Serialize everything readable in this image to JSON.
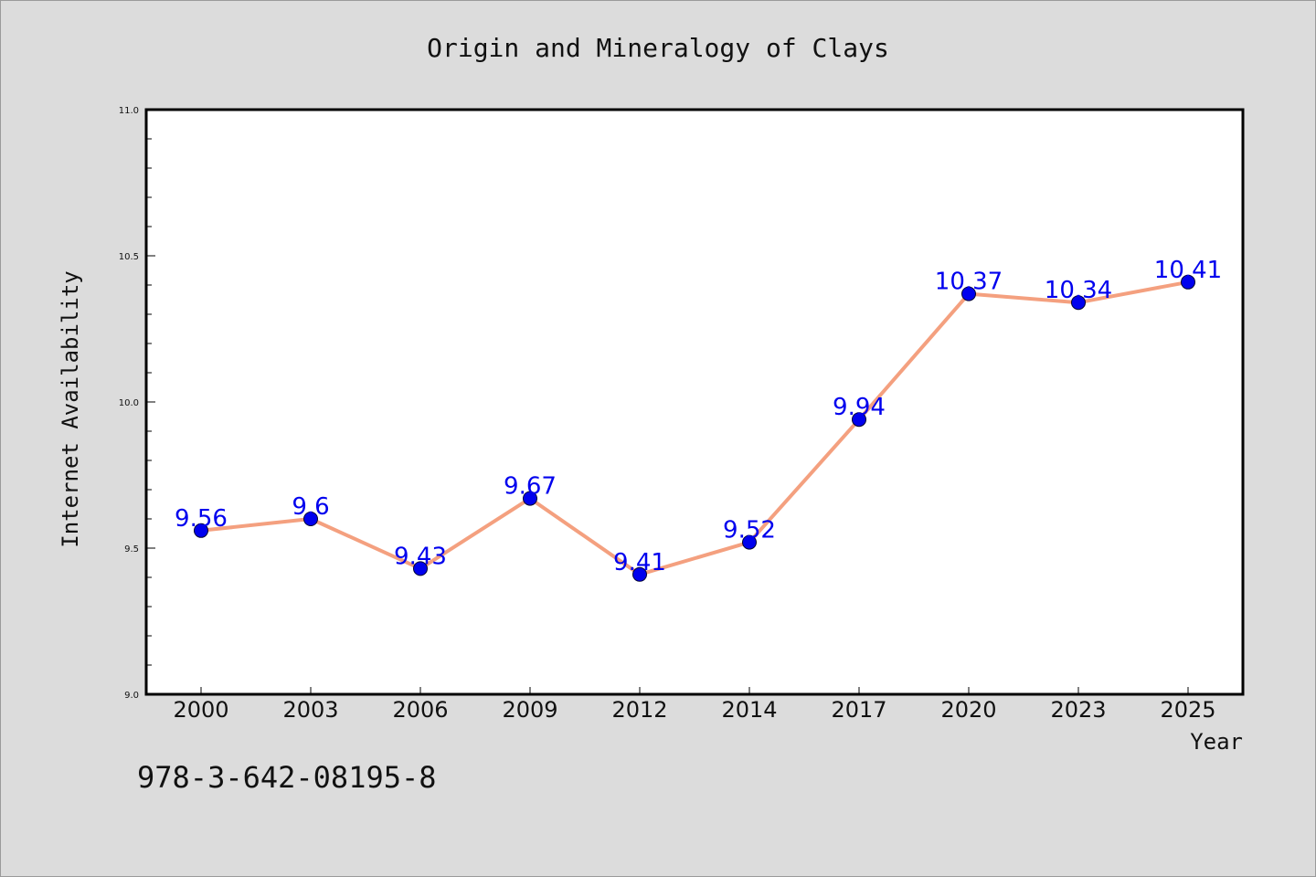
{
  "chart_data": {
    "type": "line",
    "title": "Origin and Mineralogy of Clays",
    "xlabel": "Year",
    "ylabel": "Internet Availability",
    "categories": [
      "2000",
      "2003",
      "2006",
      "2009",
      "2012",
      "2014",
      "2017",
      "2020",
      "2023",
      "2025"
    ],
    "series": [
      {
        "values": [
          9.56,
          9.6,
          9.43,
          9.67,
          9.41,
          9.52,
          9.94,
          10.37,
          10.34,
          10.41
        ],
        "labels": [
          "9.56",
          "9.6",
          "9.43",
          "9.67",
          "9.41",
          "9.52",
          "9.94",
          "10.37",
          "10.34",
          "10.41"
        ],
        "line_color": "#f4a07f",
        "marker_color": "#0000ee"
      }
    ],
    "ylim": [
      9.0,
      11.0
    ],
    "yticks": [
      "9.0",
      "9.5",
      "10.0",
      "10.5",
      "11.0"
    ],
    "grid": false,
    "data_labels": true
  },
  "footer": {
    "text": "978-3-642-08195-8"
  }
}
